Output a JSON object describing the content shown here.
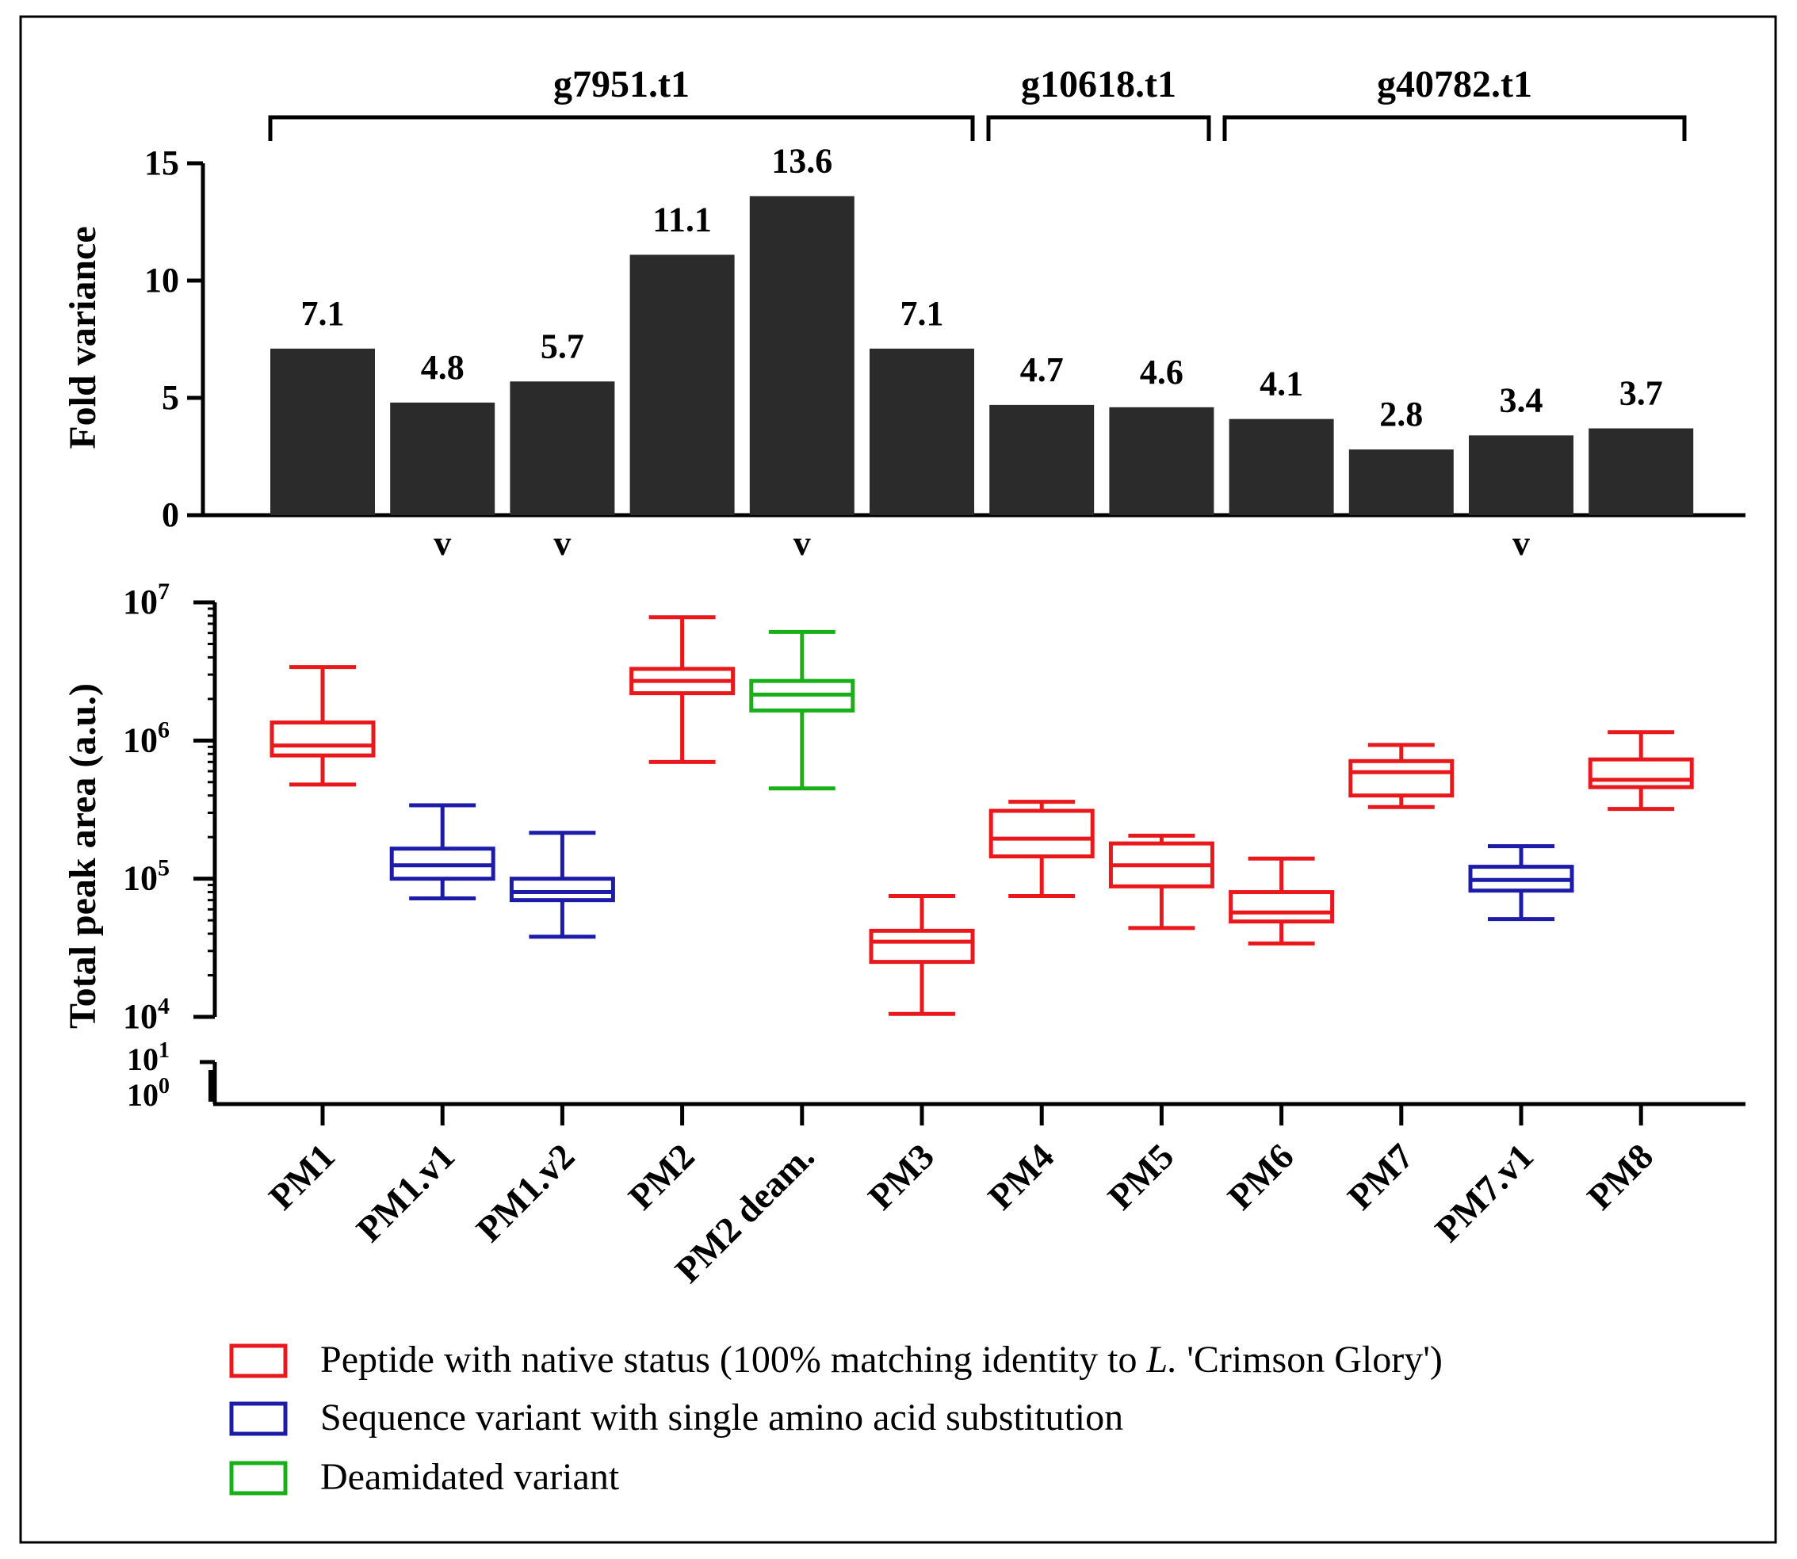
{
  "chart_data": [
    {
      "type": "bar",
      "title": "",
      "xlabel": "",
      "ylabel": "Fold variance",
      "ylim": [
        0,
        15
      ],
      "yticks": [
        "0",
        "5",
        "10",
        "15"
      ],
      "categories": [
        "PM1",
        "PM1.v1",
        "PM1.v2",
        "PM2",
        "PM2 deam.",
        "PM3",
        "PM4",
        "PM5",
        "PM6",
        "PM7",
        "PM7.v1",
        "PM8"
      ],
      "values": [
        7.1,
        4.8,
        5.7,
        11.1,
        13.6,
        7.1,
        4.7,
        4.6,
        4.1,
        2.8,
        3.4,
        3.7
      ],
      "value_labels": [
        "7.1",
        "4.8",
        "5.7",
        "11.1",
        "13.6",
        "7.1",
        "4.7",
        "4.6",
        "4.1",
        "2.8",
        "3.4",
        "3.7"
      ],
      "bar_color": "#2b2b2b",
      "variant_marker": "v",
      "variant_marks": [
        false,
        true,
        true,
        false,
        true,
        false,
        false,
        false,
        false,
        false,
        true,
        false
      ],
      "groups": [
        {
          "label": "g7951.t1",
          "from": 0,
          "to": 5
        },
        {
          "label": "g10618.t1",
          "from": 6,
          "to": 7
        },
        {
          "label": "g40782.t1",
          "from": 8,
          "to": 11
        }
      ]
    },
    {
      "type": "box",
      "title": "",
      "xlabel": "",
      "ylabel": "Total peak area (a.u.)",
      "yscale": "log",
      "ylim": [
        10000,
        10000000
      ],
      "broken_axis_lower_ticks": [
        {
          "base": "10",
          "exp": "1"
        },
        {
          "base": "10",
          "exp": "0"
        }
      ],
      "yticks": [
        {
          "base": "10",
          "exp": "4"
        },
        {
          "base": "10",
          "exp": "5"
        },
        {
          "base": "10",
          "exp": "6"
        },
        {
          "base": "10",
          "exp": "7"
        }
      ],
      "categories": [
        "PM1",
        "PM1.v1",
        "PM1.v2",
        "PM2",
        "PM2 deam.",
        "PM3",
        "PM4",
        "PM5",
        "PM6",
        "PM7",
        "PM7.v1",
        "PM8"
      ],
      "boxes": [
        {
          "min": 480000,
          "q1": 780000,
          "median": 920000,
          "q3": 1350000,
          "max": 3400000,
          "status": "native"
        },
        {
          "min": 72000,
          "q1": 100000,
          "median": 125000,
          "q3": 165000,
          "max": 340000,
          "status": "variant"
        },
        {
          "min": 38000,
          "q1": 70000,
          "median": 80000,
          "q3": 100000,
          "max": 215000,
          "status": "variant"
        },
        {
          "min": 700000,
          "q1": 2200000,
          "median": 2700000,
          "q3": 3300000,
          "max": 7800000,
          "status": "native"
        },
        {
          "min": 450000,
          "q1": 1650000,
          "median": 2150000,
          "q3": 2700000,
          "max": 6100000,
          "status": "deamidated"
        },
        {
          "min": 10500,
          "q1": 25000,
          "median": 35000,
          "q3": 42000,
          "max": 75000,
          "status": "native"
        },
        {
          "min": 75000,
          "q1": 145000,
          "median": 195000,
          "q3": 310000,
          "max": 360000,
          "status": "native"
        },
        {
          "min": 44000,
          "q1": 88000,
          "median": 125000,
          "q3": 180000,
          "max": 205000,
          "status": "native"
        },
        {
          "min": 34000,
          "q1": 49000,
          "median": 57000,
          "q3": 80000,
          "max": 140000,
          "status": "native"
        },
        {
          "min": 330000,
          "q1": 400000,
          "median": 590000,
          "q3": 710000,
          "max": 930000,
          "status": "native"
        },
        {
          "min": 51000,
          "q1": 82000,
          "median": 98000,
          "q3": 122000,
          "max": 172000,
          "status": "variant"
        },
        {
          "min": 320000,
          "q1": 460000,
          "median": 520000,
          "q3": 730000,
          "max": 1150000,
          "status": "native"
        }
      ],
      "colors": {
        "native": "#e8181c",
        "variant": "#1c1ca8",
        "deamidated": "#18b018"
      }
    }
  ],
  "legend": [
    {
      "status": "native",
      "prefix": "Peptide with native status (100% matching identity to ",
      "italic": "L.",
      "suffix": " 'Crimson Glory')"
    },
    {
      "status": "variant",
      "text": "Sequence variant with single amino acid substitution"
    },
    {
      "status": "deamidated",
      "text": "Deamidated variant"
    }
  ]
}
